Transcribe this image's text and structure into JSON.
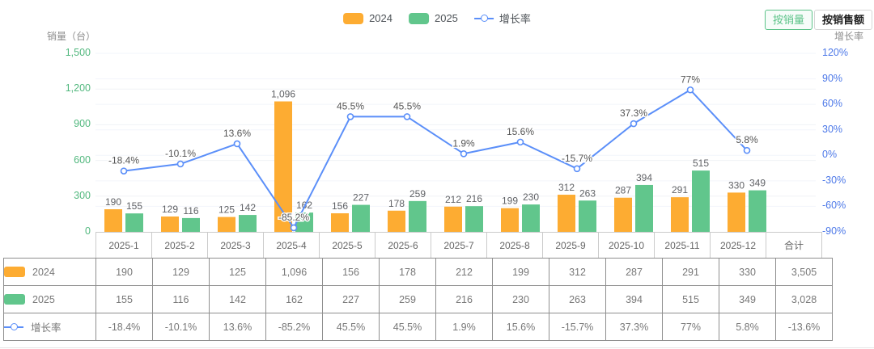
{
  "legend": {
    "items": [
      {
        "label": "2024",
        "color": "#FDAC32",
        "type": "rect"
      },
      {
        "label": "2025",
        "color": "#61C68C",
        "type": "rect"
      },
      {
        "label": "增长率",
        "color": "#5B8FF9",
        "type": "line"
      }
    ]
  },
  "toolbar": {
    "by_volume": "按销量",
    "by_amount": "按销售额"
  },
  "axes": {
    "left_title": "销量（台）",
    "right_title": "增长率",
    "left_ticks": [
      "1,500",
      "1,200",
      "900",
      "600",
      "300",
      "0"
    ],
    "right_ticks": [
      "120%",
      "90%",
      "60%",
      "30%",
      "0%",
      "-30%",
      "-60%",
      "-90%"
    ]
  },
  "chart_data": {
    "type": "bar+line",
    "categories": [
      "2025-1",
      "2025-2",
      "2025-3",
      "2025-4",
      "2025-5",
      "2025-6",
      "2025-7",
      "2025-8",
      "2025-9",
      "2025-10",
      "2025-11",
      "2025-12"
    ],
    "series": [
      {
        "name": "2024",
        "type": "bar",
        "color": "#FDAC32",
        "values": [
          190,
          129,
          125,
          1096,
          156,
          178,
          212,
          199,
          312,
          287,
          291,
          330
        ],
        "labels": [
          "190",
          "129",
          "125",
          "1,096",
          "156",
          "178",
          "212",
          "199",
          "312",
          "287",
          "291",
          "330"
        ]
      },
      {
        "name": "2025",
        "type": "bar",
        "color": "#61C68C",
        "values": [
          155,
          116,
          142,
          162,
          227,
          259,
          216,
          230,
          263,
          394,
          515,
          349
        ],
        "labels": [
          "155",
          "116",
          "142",
          "162",
          "227",
          "259",
          "216",
          "230",
          "263",
          "394",
          "515",
          "349"
        ]
      },
      {
        "name": "增长率",
        "type": "line",
        "color": "#5B8FF9",
        "axis": "right",
        "values": [
          -18.4,
          -10.1,
          13.6,
          -85.2,
          45.5,
          45.5,
          1.9,
          15.6,
          -15.7,
          37.3,
          77,
          5.8
        ],
        "labels": [
          "-18.4%",
          "-10.1%",
          "13.6%",
          "-85.2%",
          "45.5%",
          "45.5%",
          "1.9%",
          "15.6%",
          "-15.7%",
          "37.3%",
          "77%",
          "5.8%"
        ]
      }
    ],
    "left_axis": {
      "min": 0,
      "max": 1500,
      "ticks": [
        1500,
        1200,
        900,
        600,
        300,
        0
      ]
    },
    "right_axis": {
      "min": -90,
      "max": 120,
      "ticks": [
        120,
        90,
        60,
        30,
        0,
        -30,
        -60,
        -90
      ]
    },
    "legend_position": "top",
    "grid": true
  },
  "table": {
    "header": [
      "2025-1",
      "2025-2",
      "2025-3",
      "2025-4",
      "2025-5",
      "2025-6",
      "2025-7",
      "2025-8",
      "2025-9",
      "2025-10",
      "2025-11",
      "2025-12",
      "合计"
    ],
    "rows": [
      {
        "label": "2024",
        "icon": "bar-swatch",
        "color": "#FDAC32",
        "values": [
          "190",
          "129",
          "125",
          "1,096",
          "156",
          "178",
          "212",
          "199",
          "312",
          "287",
          "291",
          "330",
          "3,505"
        ]
      },
      {
        "label": "2025",
        "icon": "bar-swatch",
        "color": "#61C68C",
        "values": [
          "155",
          "116",
          "142",
          "162",
          "227",
          "259",
          "216",
          "230",
          "263",
          "394",
          "515",
          "349",
          "3,028"
        ]
      },
      {
        "label": "增长率",
        "icon": "line-marker",
        "color": "#5B8FF9",
        "values": [
          "-18.4%",
          "-10.1%",
          "13.6%",
          "-85.2%",
          "45.5%",
          "45.5%",
          "1.9%",
          "15.6%",
          "-15.7%",
          "37.3%",
          "77%",
          "5.8%",
          "-13.6%"
        ]
      }
    ]
  },
  "colors": {
    "bar_2024": "#FDAC32",
    "bar_2025": "#61C68C",
    "growth_line": "#5B8FF9",
    "left_axis_text": "#52B87E",
    "right_axis_text": "#4C78E8",
    "positive_text": "#4EBE84",
    "negative_text": "#F07A7A",
    "bar_label_text": "#606266",
    "active_button_green": "#5DC389"
  }
}
